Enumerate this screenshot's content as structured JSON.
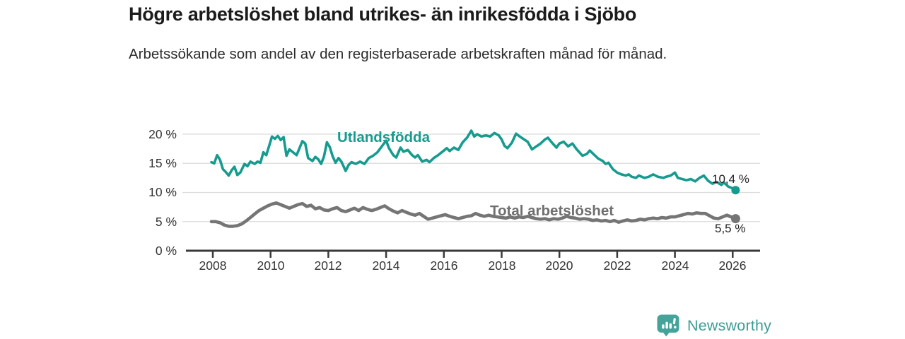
{
  "header": {
    "title": "Högre arbetslöshet bland utrikes- än inrikesfödda i Sjöbo",
    "subtitle": "Arbetssökande som andel av den registerbaserade arbetskraften månad för månad."
  },
  "chart_data": {
    "type": "line",
    "title": "Högre arbetslöshet bland utrikes- än inrikesfödda i Sjöbo",
    "subtitle": "Arbetssökande som andel av den registerbaserade arbetskraften månad för månad.",
    "grid": true,
    "legend_position": "inline-labels",
    "x_axis": {
      "tick_values": [
        2008,
        2010,
        2012,
        2014,
        2016,
        2018,
        2020,
        2022,
        2024,
        2026
      ],
      "tick_labels": [
        "2008",
        "2010",
        "2012",
        "2014",
        "2016",
        "2018",
        "2020",
        "2022",
        "2024",
        "2026"
      ],
      "range": [
        2006.95,
        2026.95
      ]
    },
    "y_axis": {
      "tick_values": [
        0,
        5,
        10,
        15,
        20
      ],
      "tick_labels": [
        "0 %",
        "5 %",
        "10 %",
        "15 %",
        "20 %"
      ],
      "range": [
        0,
        21.8
      ],
      "unit": "%"
    },
    "series": [
      {
        "name": "Utlandsfödda",
        "color": "#169b8e",
        "end_label": "10,4 %",
        "last_value": 10.4,
        "points": [
          [
            2007.95,
            15.2
          ],
          [
            2008.05,
            15.0
          ],
          [
            2008.15,
            16.4
          ],
          [
            2008.25,
            15.6
          ],
          [
            2008.35,
            14.0
          ],
          [
            2008.45,
            13.5
          ],
          [
            2008.55,
            12.9
          ],
          [
            2008.65,
            13.8
          ],
          [
            2008.75,
            14.4
          ],
          [
            2008.85,
            13.0
          ],
          [
            2008.95,
            13.4
          ],
          [
            2009.1,
            14.9
          ],
          [
            2009.2,
            14.5
          ],
          [
            2009.3,
            15.3
          ],
          [
            2009.45,
            14.9
          ],
          [
            2009.55,
            15.3
          ],
          [
            2009.65,
            15.1
          ],
          [
            2009.75,
            16.9
          ],
          [
            2009.85,
            16.4
          ],
          [
            2009.95,
            18.0
          ],
          [
            2010.05,
            19.6
          ],
          [
            2010.15,
            19.2
          ],
          [
            2010.25,
            19.7
          ],
          [
            2010.35,
            19.0
          ],
          [
            2010.45,
            19.5
          ],
          [
            2010.55,
            16.3
          ],
          [
            2010.65,
            17.4
          ],
          [
            2010.8,
            16.8
          ],
          [
            2010.9,
            16.4
          ],
          [
            2011.0,
            17.6
          ],
          [
            2011.1,
            18.8
          ],
          [
            2011.2,
            18.4
          ],
          [
            2011.3,
            15.9
          ],
          [
            2011.45,
            15.4
          ],
          [
            2011.55,
            16.1
          ],
          [
            2011.65,
            15.7
          ],
          [
            2011.75,
            14.9
          ],
          [
            2011.85,
            16.2
          ],
          [
            2011.95,
            18.6
          ],
          [
            2012.05,
            17.8
          ],
          [
            2012.15,
            16.2
          ],
          [
            2012.25,
            15.1
          ],
          [
            2012.35,
            15.9
          ],
          [
            2012.45,
            15.3
          ],
          [
            2012.6,
            13.7
          ],
          [
            2012.7,
            14.7
          ],
          [
            2012.8,
            15.2
          ],
          [
            2012.95,
            14.9
          ],
          [
            2013.1,
            15.3
          ],
          [
            2013.25,
            14.9
          ],
          [
            2013.4,
            15.9
          ],
          [
            2013.55,
            16.3
          ],
          [
            2013.7,
            16.9
          ],
          [
            2013.85,
            17.9
          ],
          [
            2014.0,
            18.9
          ],
          [
            2014.1,
            17.6
          ],
          [
            2014.25,
            16.4
          ],
          [
            2014.35,
            16.0
          ],
          [
            2014.5,
            17.7
          ],
          [
            2014.6,
            17.0
          ],
          [
            2014.75,
            17.3
          ],
          [
            2014.9,
            16.4
          ],
          [
            2015.0,
            16.0
          ],
          [
            2015.1,
            16.4
          ],
          [
            2015.25,
            15.3
          ],
          [
            2015.4,
            15.6
          ],
          [
            2015.5,
            15.2
          ],
          [
            2015.65,
            15.9
          ],
          [
            2015.8,
            16.4
          ],
          [
            2015.95,
            17.0
          ],
          [
            2016.1,
            17.6
          ],
          [
            2016.2,
            17.1
          ],
          [
            2016.35,
            17.7
          ],
          [
            2016.5,
            17.3
          ],
          [
            2016.65,
            18.6
          ],
          [
            2016.8,
            19.4
          ],
          [
            2016.95,
            20.6
          ],
          [
            2017.05,
            19.6
          ],
          [
            2017.15,
            20.0
          ],
          [
            2017.3,
            19.6
          ],
          [
            2017.45,
            19.8
          ],
          [
            2017.6,
            19.6
          ],
          [
            2017.75,
            20.2
          ],
          [
            2017.9,
            19.8
          ],
          [
            2018.0,
            19.1
          ],
          [
            2018.1,
            18.0
          ],
          [
            2018.2,
            17.6
          ],
          [
            2018.35,
            18.5
          ],
          [
            2018.5,
            20.1
          ],
          [
            2018.6,
            19.7
          ],
          [
            2018.75,
            19.2
          ],
          [
            2018.9,
            18.7
          ],
          [
            2019.05,
            17.4
          ],
          [
            2019.2,
            17.9
          ],
          [
            2019.35,
            18.4
          ],
          [
            2019.5,
            19.1
          ],
          [
            2019.6,
            19.4
          ],
          [
            2019.75,
            18.5
          ],
          [
            2019.9,
            17.7
          ],
          [
            2020.0,
            18.4
          ],
          [
            2020.15,
            18.7
          ],
          [
            2020.3,
            17.9
          ],
          [
            2020.45,
            18.4
          ],
          [
            2020.6,
            17.4
          ],
          [
            2020.8,
            16.3
          ],
          [
            2020.95,
            16.6
          ],
          [
            2021.05,
            17.2
          ],
          [
            2021.2,
            16.5
          ],
          [
            2021.35,
            15.8
          ],
          [
            2021.5,
            15.4
          ],
          [
            2021.6,
            14.9
          ],
          [
            2021.7,
            15.1
          ],
          [
            2021.85,
            14.0
          ],
          [
            2022.0,
            13.4
          ],
          [
            2022.15,
            13.1
          ],
          [
            2022.3,
            12.9
          ],
          [
            2022.4,
            13.1
          ],
          [
            2022.5,
            12.7
          ],
          [
            2022.65,
            12.5
          ],
          [
            2022.75,
            12.9
          ],
          [
            2022.95,
            12.5
          ],
          [
            2023.1,
            12.7
          ],
          [
            2023.25,
            13.1
          ],
          [
            2023.4,
            12.7
          ],
          [
            2023.6,
            12.5
          ],
          [
            2023.7,
            12.7
          ],
          [
            2023.85,
            12.9
          ],
          [
            2024.0,
            13.4
          ],
          [
            2024.1,
            12.5
          ],
          [
            2024.25,
            12.3
          ],
          [
            2024.4,
            12.1
          ],
          [
            2024.55,
            12.3
          ],
          [
            2024.7,
            11.9
          ],
          [
            2024.85,
            12.5
          ],
          [
            2025.0,
            12.9
          ],
          [
            2025.15,
            12.0
          ],
          [
            2025.3,
            11.5
          ],
          [
            2025.45,
            11.8
          ],
          [
            2025.6,
            11.3
          ],
          [
            2025.7,
            11.7
          ],
          [
            2025.85,
            11.0
          ],
          [
            2026.0,
            10.7
          ],
          [
            2026.1,
            10.4
          ]
        ]
      },
      {
        "name": "Total arbetslöshet",
        "color": "#757575",
        "end_label": "5,5 %",
        "last_value": 5.5,
        "points": [
          [
            2007.95,
            5.0
          ],
          [
            2008.1,
            5.0
          ],
          [
            2008.25,
            4.8
          ],
          [
            2008.4,
            4.4
          ],
          [
            2008.55,
            4.2
          ],
          [
            2008.7,
            4.2
          ],
          [
            2008.85,
            4.3
          ],
          [
            2009.0,
            4.6
          ],
          [
            2009.15,
            5.1
          ],
          [
            2009.3,
            5.7
          ],
          [
            2009.45,
            6.3
          ],
          [
            2009.6,
            6.9
          ],
          [
            2009.75,
            7.3
          ],
          [
            2009.9,
            7.7
          ],
          [
            2010.05,
            8.0
          ],
          [
            2010.2,
            8.2
          ],
          [
            2010.35,
            7.9
          ],
          [
            2010.5,
            7.6
          ],
          [
            2010.65,
            7.3
          ],
          [
            2010.8,
            7.6
          ],
          [
            2010.95,
            7.9
          ],
          [
            2011.1,
            8.1
          ],
          [
            2011.25,
            7.6
          ],
          [
            2011.4,
            7.8
          ],
          [
            2011.55,
            7.2
          ],
          [
            2011.7,
            7.4
          ],
          [
            2011.85,
            7.0
          ],
          [
            2012.0,
            6.9
          ],
          [
            2012.15,
            7.2
          ],
          [
            2012.3,
            7.4
          ],
          [
            2012.45,
            6.9
          ],
          [
            2012.6,
            6.7
          ],
          [
            2012.75,
            7.0
          ],
          [
            2012.9,
            7.3
          ],
          [
            2013.05,
            6.9
          ],
          [
            2013.2,
            7.4
          ],
          [
            2013.35,
            7.1
          ],
          [
            2013.5,
            6.9
          ],
          [
            2013.65,
            7.1
          ],
          [
            2013.8,
            7.4
          ],
          [
            2013.95,
            7.7
          ],
          [
            2014.1,
            7.2
          ],
          [
            2014.25,
            6.8
          ],
          [
            2014.4,
            6.5
          ],
          [
            2014.55,
            6.9
          ],
          [
            2014.7,
            6.6
          ],
          [
            2014.85,
            6.3
          ],
          [
            2015.0,
            6.1
          ],
          [
            2015.15,
            6.4
          ],
          [
            2015.3,
            5.9
          ],
          [
            2015.45,
            5.4
          ],
          [
            2015.6,
            5.6
          ],
          [
            2015.75,
            5.8
          ],
          [
            2015.9,
            6.0
          ],
          [
            2016.05,
            6.2
          ],
          [
            2016.2,
            5.9
          ],
          [
            2016.35,
            5.7
          ],
          [
            2016.5,
            5.5
          ],
          [
            2016.65,
            5.7
          ],
          [
            2016.8,
            5.9
          ],
          [
            2016.95,
            6.0
          ],
          [
            2017.1,
            6.4
          ],
          [
            2017.25,
            6.1
          ],
          [
            2017.4,
            5.9
          ],
          [
            2017.55,
            6.1
          ],
          [
            2017.7,
            5.9
          ],
          [
            2017.85,
            5.8
          ],
          [
            2018.0,
            5.7
          ],
          [
            2018.15,
            5.6
          ],
          [
            2018.3,
            5.8
          ],
          [
            2018.45,
            5.6
          ],
          [
            2018.6,
            5.8
          ],
          [
            2018.75,
            5.7
          ],
          [
            2018.9,
            5.9
          ],
          [
            2019.05,
            5.7
          ],
          [
            2019.2,
            5.5
          ],
          [
            2019.35,
            5.4
          ],
          [
            2019.5,
            5.5
          ],
          [
            2019.65,
            5.3
          ],
          [
            2019.8,
            5.5
          ],
          [
            2019.95,
            5.4
          ],
          [
            2020.1,
            5.6
          ],
          [
            2020.25,
            5.9
          ],
          [
            2020.4,
            5.7
          ],
          [
            2020.55,
            5.6
          ],
          [
            2020.7,
            5.4
          ],
          [
            2020.85,
            5.5
          ],
          [
            2021.0,
            5.4
          ],
          [
            2021.15,
            5.2
          ],
          [
            2021.3,
            5.3
          ],
          [
            2021.45,
            5.1
          ],
          [
            2021.6,
            5.2
          ],
          [
            2021.75,
            5.0
          ],
          [
            2021.9,
            5.2
          ],
          [
            2022.05,
            4.9
          ],
          [
            2022.2,
            5.1
          ],
          [
            2022.35,
            5.3
          ],
          [
            2022.5,
            5.1
          ],
          [
            2022.65,
            5.2
          ],
          [
            2022.8,
            5.4
          ],
          [
            2022.95,
            5.3
          ],
          [
            2023.1,
            5.5
          ],
          [
            2023.25,
            5.6
          ],
          [
            2023.4,
            5.5
          ],
          [
            2023.55,
            5.7
          ],
          [
            2023.7,
            5.6
          ],
          [
            2023.85,
            5.8
          ],
          [
            2024.0,
            5.8
          ],
          [
            2024.15,
            6.0
          ],
          [
            2024.3,
            6.2
          ],
          [
            2024.45,
            6.4
          ],
          [
            2024.6,
            6.3
          ],
          [
            2024.75,
            6.5
          ],
          [
            2024.9,
            6.4
          ],
          [
            2025.05,
            6.4
          ],
          [
            2025.2,
            6.0
          ],
          [
            2025.35,
            5.6
          ],
          [
            2025.5,
            5.5
          ],
          [
            2025.65,
            5.8
          ],
          [
            2025.8,
            6.1
          ],
          [
            2025.9,
            5.9
          ],
          [
            2026.0,
            5.7
          ],
          [
            2026.1,
            5.5
          ]
        ]
      }
    ]
  },
  "branding": {
    "name": "Newsworthy",
    "color": "#3e9c94"
  },
  "colors": {
    "grid": "#dcdcdc",
    "axis": "#3a3a3a",
    "axis_text": "#333333"
  }
}
